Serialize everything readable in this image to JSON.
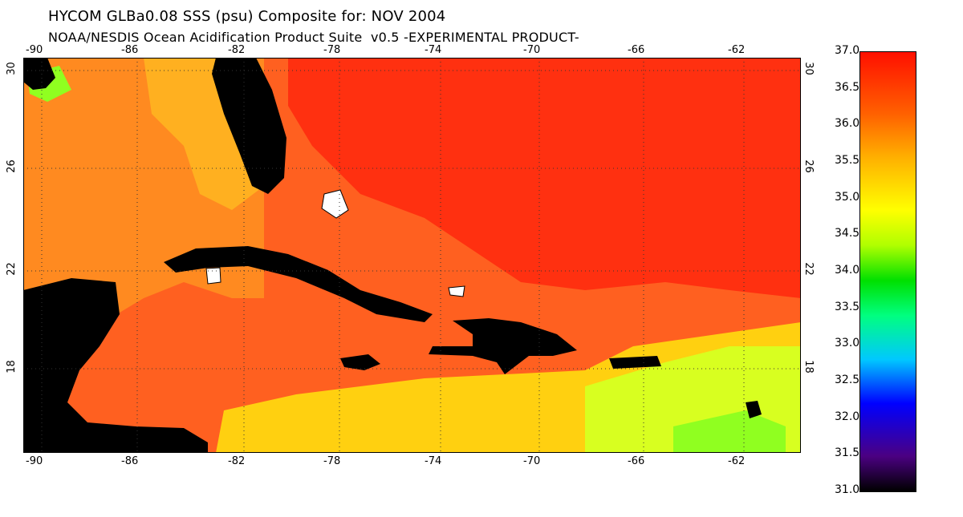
{
  "title_line1": "HYCOM GLBa0.08 SSS (psu) Composite for: NOV 2004",
  "title_line2": "NOAA/NESDIS Ocean Acidification Product Suite  v0.5 -EXPERIMENTAL PRODUCT-",
  "axes": {
    "lon_ticks": [
      "-90",
      "-86",
      "-82",
      "-78",
      "-74",
      "-70",
      "-66",
      "-62"
    ],
    "lat_ticks": [
      "30",
      "26",
      "22",
      "18"
    ]
  },
  "colorbar": {
    "labels": [
      "37.0",
      "36.5",
      "36.0",
      "35.5",
      "35.0",
      "34.5",
      "34.0",
      "33.5",
      "33.0",
      "32.5",
      "32.0",
      "31.5",
      "31.0"
    ],
    "colors": {
      "low": "#000000",
      "violet": "#4b0082",
      "blue": "#0000ff",
      "cyan": "#00c8ff",
      "green": "#00e000",
      "yellow": "#ffff00",
      "orange": "#ffb000",
      "red": "#ff1000"
    }
  },
  "map_colors": {
    "land": "#000000",
    "open_ocean_high": "#ff3010",
    "ocean_mid": "#ff6020",
    "gulf": "#ff8a20",
    "shelf": "#ffb020",
    "caribbean_south": "#ffd010",
    "eastern_caribbean": "#d8ff20",
    "low_salinity": "#90ff20"
  }
}
